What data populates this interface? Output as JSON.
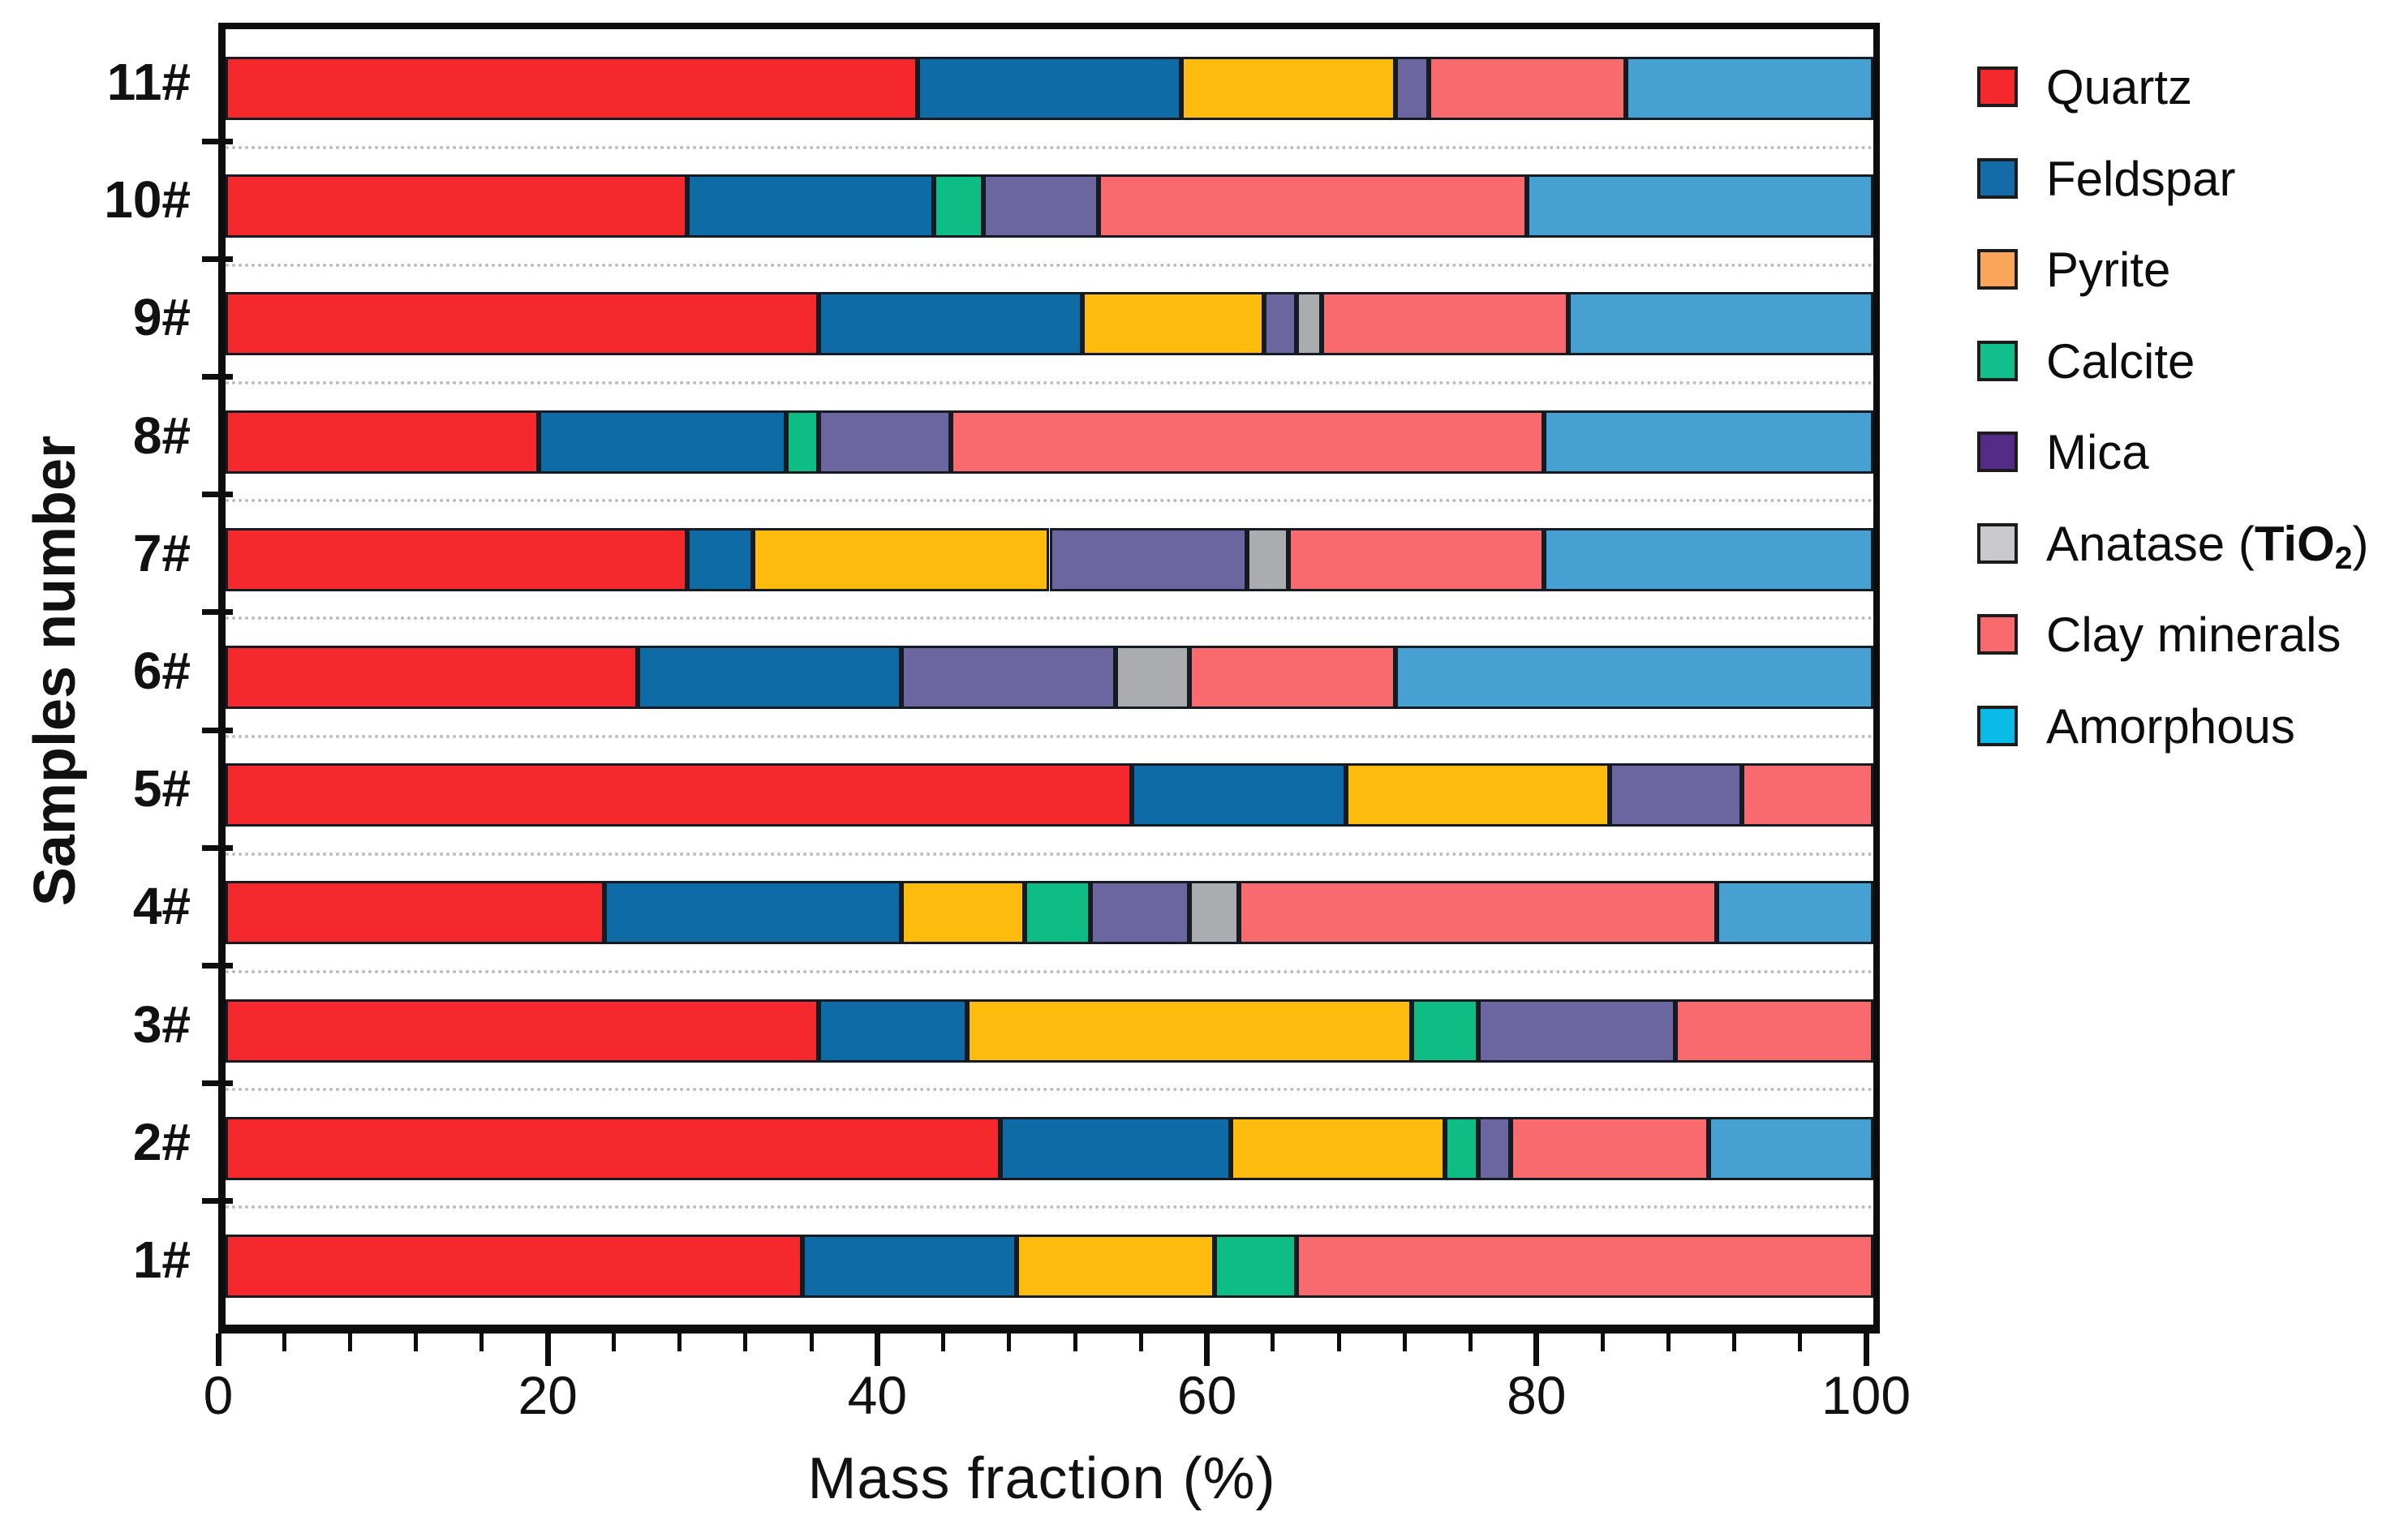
{
  "figure_title": "",
  "axes": {
    "x_title": "Mass fraction (%)",
    "y_title": "Samples number",
    "x_tick_labels": [
      "0",
      "20",
      "40",
      "60",
      "80",
      "100"
    ],
    "x_major_step": 20,
    "x_minor_step": 4,
    "x_range": [
      0,
      100
    ]
  },
  "legend": {
    "position": "right-top",
    "items": [
      {
        "label": "Quartz",
        "color": "#f5282d"
      },
      {
        "label": "Feldspar",
        "color": "#146ba8"
      },
      {
        "label": "Pyrite",
        "color": "#f9a65b"
      },
      {
        "label": "Calcite",
        "color": "#12be8c"
      },
      {
        "label": "Mica",
        "color": "#542c88"
      },
      {
        "label": "Anatase (TiO2)",
        "color": "#c9c9cd",
        "parts": [
          {
            "t": "Anatase "
          },
          {
            "t": "("
          },
          {
            "t": "TiO",
            "b": 1
          },
          {
            "t": "2",
            "b": 1,
            "sub": 1
          },
          {
            "t": ")"
          }
        ]
      },
      {
        "label": "Clay minerals",
        "color": "#f96a6e"
      },
      {
        "label": "Amorphous",
        "color": "#0abbe8"
      }
    ]
  },
  "chart_data": {
    "type": "bar",
    "orientation": "horizontal",
    "stacked": true,
    "title": "",
    "xlabel": "Mass fraction (%)",
    "ylabel": "Samples number",
    "xlim": [
      0,
      100
    ],
    "grid": "dotted horizontal minor gridlines between categories",
    "legend_position": "outside right top",
    "categories": [
      "11#",
      "10#",
      "9#",
      "8#",
      "7#",
      "6#",
      "5#",
      "4#",
      "3#",
      "2#",
      "1#"
    ],
    "series": [
      {
        "name": "Quartz",
        "color": "#f5282d",
        "values": [
          42,
          28,
          36,
          19,
          28,
          25,
          55,
          23,
          36,
          47,
          35
        ]
      },
      {
        "name": "Feldspar",
        "color": "#0f6ba5",
        "values": [
          16,
          15,
          16,
          15,
          4,
          16,
          13,
          18,
          9,
          14,
          13
        ]
      },
      {
        "name": "Pyrite",
        "color": "#fcbb0d",
        "values": [
          13,
          0,
          11,
          0,
          18,
          0,
          16,
          7.5,
          27,
          13,
          12
        ]
      },
      {
        "name": "Calcite",
        "color": "#0ebd83",
        "values": [
          0,
          3,
          0,
          2,
          0,
          0,
          0,
          4,
          4,
          2,
          5
        ]
      },
      {
        "name": "Mica",
        "color": "#6b66a0",
        "values": [
          2,
          7,
          2,
          8,
          12,
          13,
          8,
          6,
          12,
          2,
          0
        ]
      },
      {
        "name": "Anatase (TiO2)",
        "color": "#aaacaf",
        "values": [
          0,
          0,
          1.5,
          0,
          2.5,
          4.5,
          0,
          3,
          0,
          0,
          0
        ]
      },
      {
        "name": "Clay minerals",
        "color": "#f96a6e",
        "values": [
          12,
          26,
          15,
          36,
          15.5,
          12.5,
          8,
          29,
          12,
          12,
          35
        ]
      },
      {
        "name": "Amorphous",
        "color": "#47a0d2",
        "values": [
          15,
          21,
          18.5,
          20,
          20,
          29,
          0,
          9.5,
          0,
          10,
          0
        ]
      }
    ]
  }
}
